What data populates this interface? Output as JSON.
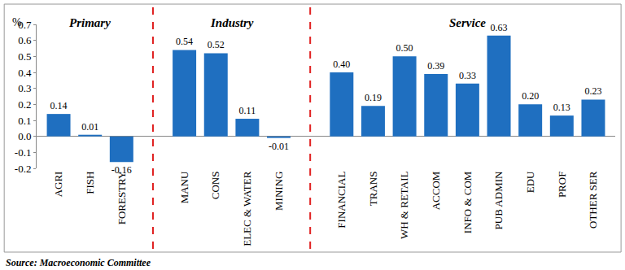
{
  "chart_data": {
    "type": "bar",
    "y_label": "%",
    "source": "Source: Macroeconomic Committee",
    "groups": [
      {
        "label": "Primary",
        "categories": [
          "AGRI",
          "FISH",
          "FORESTRY"
        ]
      },
      {
        "label": "Industry",
        "categories": [
          "MANU",
          "CONS",
          "ELEC & WATER",
          "MINING"
        ]
      },
      {
        "label": "Service",
        "categories": [
          "FINANCIAL",
          "TRANS",
          "WH & RETAIL",
          "ACCOM",
          "INFO & COM",
          "PUB ADMIN",
          "EDU",
          "PROF",
          "OTHER SER"
        ]
      }
    ],
    "categories": [
      "AGRI",
      "FISH",
      "FORESTRY",
      "MANU",
      "CONS",
      "ELEC & WATER",
      "MINING",
      "FINANCIAL",
      "TRANS",
      "WH & RETAIL",
      "ACCOM",
      "INFO & COM",
      "PUB ADMIN",
      "EDU",
      "PROF",
      "OTHER SER"
    ],
    "values": [
      0.14,
      0.01,
      -0.16,
      0.54,
      0.52,
      0.11,
      -0.01,
      0.4,
      0.19,
      0.5,
      0.39,
      0.33,
      0.63,
      0.2,
      0.13,
      0.23
    ],
    "value_labels": [
      "0.14",
      "0.01",
      "-0.16",
      "0.54",
      "0.52",
      "0.11",
      "-0.01",
      "0.40",
      "0.19",
      "0.50",
      "0.39",
      "0.33",
      "0.63",
      "0.20",
      "0.13",
      "0.23"
    ],
    "color": "#1f6fc0",
    "data_labels": true,
    "grid": false,
    "ylim": [
      -0.2,
      0.7
    ],
    "yticks": [
      -0.2,
      -0.1,
      {
        "value": 0,
        "label": "0.0"
      },
      0.1,
      0.2,
      0.3,
      0.4,
      0.5,
      0.6,
      0.7
    ]
  }
}
